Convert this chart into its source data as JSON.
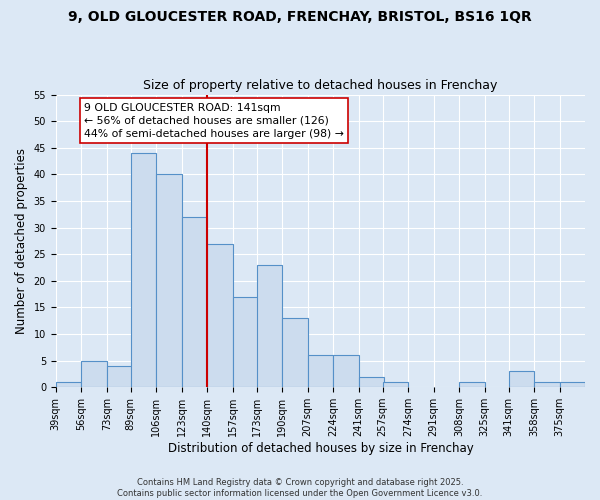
{
  "title1": "9, OLD GLOUCESTER ROAD, FRENCHAY, BRISTOL, BS16 1QR",
  "title2": "Size of property relative to detached houses in Frenchay",
  "xlabel": "Distribution of detached houses by size in Frenchay",
  "ylabel": "Number of detached properties",
  "annotation_line1": "9 OLD GLOUCESTER ROAD: 141sqm",
  "annotation_line2": "← 56% of detached houses are smaller (126)",
  "annotation_line3": "44% of semi-detached houses are larger (98) →",
  "bar_color": "#ccdcee",
  "bar_edge_color": "#5590c8",
  "vline_color": "#cc0000",
  "vline_x": 140,
  "bins": [
    39,
    56,
    73,
    89,
    106,
    123,
    140,
    157,
    173,
    190,
    207,
    224,
    241,
    257,
    274,
    291,
    308,
    325,
    341,
    358,
    375
  ],
  "counts": [
    1,
    5,
    4,
    44,
    40,
    32,
    27,
    17,
    23,
    13,
    6,
    6,
    2,
    1,
    0,
    0,
    1,
    0,
    3,
    1,
    1
  ],
  "ylim": [
    0,
    55
  ],
  "yticks": [
    0,
    5,
    10,
    15,
    20,
    25,
    30,
    35,
    40,
    45,
    50,
    55
  ],
  "background_color": "#dce8f5",
  "plot_bg_color": "#dce8f5",
  "footer1": "Contains HM Land Registry data © Crown copyright and database right 2025.",
  "footer2": "Contains public sector information licensed under the Open Government Licence v3.0.",
  "title_fontsize": 10,
  "subtitle_fontsize": 9,
  "tick_fontsize": 7,
  "axis_label_fontsize": 8.5,
  "annotation_fontsize": 7.8
}
